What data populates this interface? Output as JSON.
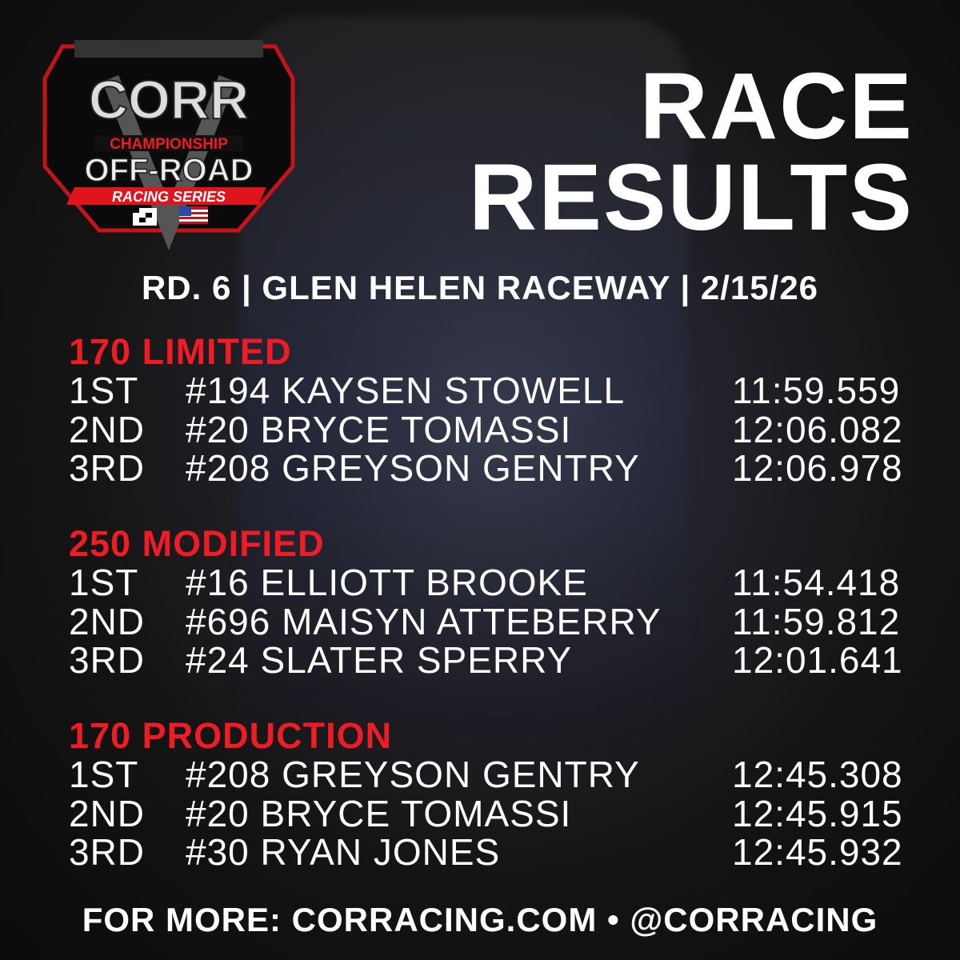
{
  "logo": {
    "line1": "CORR",
    "line2": "CHAMPIONSHIP",
    "line3": "OFF-ROAD",
    "line4": "RACING SERIES"
  },
  "title": {
    "line1": "RACE",
    "line2": "RESULTS"
  },
  "subtitle": "RD. 6 | GLEN HELEN RACEWAY | 2/15/26",
  "accent_color": "#ee1c24",
  "sections": [
    {
      "name": "170 LIMITED",
      "rows": [
        {
          "pos": "1ST",
          "driver": "#194 KAYSEN STOWELL",
          "time": "11:59.559"
        },
        {
          "pos": "2ND",
          "driver": "#20 BRYCE TOMASSI",
          "time": "12:06.082"
        },
        {
          "pos": "3RD",
          "driver": "#208 GREYSON GENTRY",
          "time": "12:06.978"
        }
      ]
    },
    {
      "name": "250 MODIFIED",
      "rows": [
        {
          "pos": "1ST",
          "driver": "#16 ELLIOTT BROOKE",
          "time": "11:54.418"
        },
        {
          "pos": "2ND",
          "driver": "#696 MAISYN ATTEBERRY",
          "time": "11:59.812"
        },
        {
          "pos": "3RD",
          "driver": "#24 SLATER SPERRY",
          "time": "12:01.641"
        }
      ]
    },
    {
      "name": "170 PRODUCTION",
      "rows": [
        {
          "pos": "1ST",
          "driver": "#208 GREYSON GENTRY",
          "time": "12:45.308"
        },
        {
          "pos": "2ND",
          "driver": "#20 BRYCE TOMASSI",
          "time": "12:45.915"
        },
        {
          "pos": "3RD",
          "driver": "#30 RYAN JONES",
          "time": "12:45.932"
        }
      ]
    }
  ],
  "footer": "FOR MORE: CORRACING.COM • @CORRACING"
}
